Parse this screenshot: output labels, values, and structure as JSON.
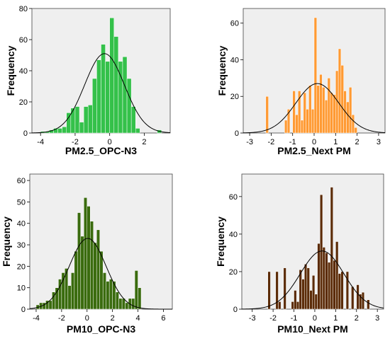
{
  "chart_data": [
    {
      "type": "bar",
      "xlabel": "PM2.5_OPC-N3",
      "ylabel": "Frequency",
      "xlim": [
        -4.5,
        3.5
      ],
      "ylim": [
        0,
        80
      ],
      "xticks": [
        -4,
        -2,
        0,
        2
      ],
      "yticks": [
        0,
        20,
        40,
        60,
        80
      ],
      "bin_width": 0.25,
      "color": "#34c14a",
      "background": "#efefef",
      "bins": [
        {
          "x": -4.0,
          "y": 1
        },
        {
          "x": -3.75,
          "y": 1
        },
        {
          "x": -3.5,
          "y": 2
        },
        {
          "x": -3.25,
          "y": 3
        },
        {
          "x": -3.0,
          "y": 3
        },
        {
          "x": -2.75,
          "y": 4
        },
        {
          "x": -2.5,
          "y": 13
        },
        {
          "x": -2.25,
          "y": 16
        },
        {
          "x": -2.0,
          "y": 17
        },
        {
          "x": -1.75,
          "y": 7
        },
        {
          "x": -1.5,
          "y": 17
        },
        {
          "x": -1.25,
          "y": 18
        },
        {
          "x": -1.0,
          "y": 35
        },
        {
          "x": -0.75,
          "y": 47
        },
        {
          "x": -0.5,
          "y": 57
        },
        {
          "x": -0.25,
          "y": 46
        },
        {
          "x": 0.0,
          "y": 74
        },
        {
          "x": 0.25,
          "y": 62
        },
        {
          "x": 0.5,
          "y": 46
        },
        {
          "x": 0.75,
          "y": 49
        },
        {
          "x": 1.0,
          "y": 35
        },
        {
          "x": 1.25,
          "y": 17
        },
        {
          "x": 1.5,
          "y": 3
        },
        {
          "x": 2.75,
          "y": 2
        }
      ],
      "normal_curve": {
        "mean": -0.3,
        "sd": 1.15,
        "peak": 51
      }
    },
    {
      "type": "bar",
      "xlabel": "PM2.5_Next PM",
      "ylabel": "Frequency",
      "xlim": [
        -3.3,
        3.3
      ],
      "ylim": [
        0,
        68
      ],
      "xticks": [
        -3,
        -2,
        -1,
        0,
        1,
        2,
        3
      ],
      "yticks": [
        0,
        20,
        40,
        60
      ],
      "bin_width": 0.125,
      "color": "#ff9a33",
      "background": "#efefef",
      "bins": [
        {
          "x": -2.25,
          "y": 20
        },
        {
          "x": -1.375,
          "y": 7
        },
        {
          "x": -1.25,
          "y": 13
        },
        {
          "x": -1.0,
          "y": 23
        },
        {
          "x": -0.875,
          "y": 10
        },
        {
          "x": -0.75,
          "y": 23
        },
        {
          "x": -0.625,
          "y": 7
        },
        {
          "x": -0.5,
          "y": 22
        },
        {
          "x": -0.375,
          "y": 13
        },
        {
          "x": -0.25,
          "y": 26
        },
        {
          "x": -0.125,
          "y": 13
        },
        {
          "x": 0.0,
          "y": 63
        },
        {
          "x": 0.125,
          "y": 26
        },
        {
          "x": 0.25,
          "y": 32
        },
        {
          "x": 0.375,
          "y": 25
        },
        {
          "x": 0.5,
          "y": 18
        },
        {
          "x": 0.625,
          "y": 30
        },
        {
          "x": 0.75,
          "y": 22
        },
        {
          "x": 0.875,
          "y": 21
        },
        {
          "x": 1.0,
          "y": 34
        },
        {
          "x": 1.125,
          "y": 46
        },
        {
          "x": 1.25,
          "y": 37
        },
        {
          "x": 1.375,
          "y": 23
        },
        {
          "x": 1.5,
          "y": 17
        },
        {
          "x": 1.625,
          "y": 25
        },
        {
          "x": 1.75,
          "y": 10
        },
        {
          "x": 1.875,
          "y": 3
        }
      ],
      "normal_curve": {
        "mean": 0.15,
        "sd": 1.0,
        "peak": 27
      }
    },
    {
      "type": "bar",
      "xlabel": "PM10_OPC-N3",
      "ylabel": "Frequency",
      "xlim": [
        -4.5,
        6.7
      ],
      "ylim": [
        0,
        63
      ],
      "xticks": [
        -4,
        -2,
        0,
        2,
        4,
        6
      ],
      "yticks": [
        0,
        10,
        20,
        30,
        40,
        50,
        60
      ],
      "bin_width": 0.25,
      "color": "#3a6b0e",
      "background": "#efefef",
      "bins": [
        {
          "x": -4.0,
          "y": 2
        },
        {
          "x": -3.75,
          "y": 3
        },
        {
          "x": -3.5,
          "y": 3
        },
        {
          "x": -3.25,
          "y": 4
        },
        {
          "x": -3.0,
          "y": 4
        },
        {
          "x": -2.75,
          "y": 8
        },
        {
          "x": -2.5,
          "y": 10
        },
        {
          "x": -2.25,
          "y": 14
        },
        {
          "x": -2.0,
          "y": 17
        },
        {
          "x": -1.75,
          "y": 19
        },
        {
          "x": -1.5,
          "y": 11
        },
        {
          "x": -1.25,
          "y": 17
        },
        {
          "x": -1.0,
          "y": 27
        },
        {
          "x": -0.75,
          "y": 45
        },
        {
          "x": -0.5,
          "y": 34
        },
        {
          "x": -0.25,
          "y": 52
        },
        {
          "x": 0.0,
          "y": 48
        },
        {
          "x": 0.25,
          "y": 41
        },
        {
          "x": 0.5,
          "y": 31
        },
        {
          "x": 0.75,
          "y": 37
        },
        {
          "x": 1.0,
          "y": 27
        },
        {
          "x": 1.25,
          "y": 17
        },
        {
          "x": 1.5,
          "y": 13
        },
        {
          "x": 1.75,
          "y": 14
        },
        {
          "x": 2.0,
          "y": 13
        },
        {
          "x": 2.25,
          "y": 8
        },
        {
          "x": 2.5,
          "y": 5
        },
        {
          "x": 2.75,
          "y": 5
        },
        {
          "x": 3.0,
          "y": 3
        },
        {
          "x": 3.25,
          "y": 5
        },
        {
          "x": 3.5,
          "y": 5
        },
        {
          "x": 3.75,
          "y": 18
        },
        {
          "x": 4.0,
          "y": 10
        }
      ],
      "normal_curve": {
        "mean": 0.05,
        "sd": 1.45,
        "peak": 33
      }
    },
    {
      "type": "bar",
      "xlabel": "PM10_Next PM",
      "ylabel": "Frequency",
      "xlim": [
        -3.5,
        3.3
      ],
      "ylim": [
        0,
        72
      ],
      "xticks": [
        -3,
        -2,
        -1,
        0,
        1,
        2,
        3
      ],
      "yticks": [
        0,
        20,
        40,
        60
      ],
      "bin_width": 0.125,
      "color": "#5b2b07",
      "background": "#efefef",
      "bins": [
        {
          "x": -2.25,
          "y": 20
        },
        {
          "x": -1.875,
          "y": 20
        },
        {
          "x": -1.75,
          "y": 4
        },
        {
          "x": -1.5,
          "y": 22
        },
        {
          "x": -1.125,
          "y": 4
        },
        {
          "x": -1.0,
          "y": 10
        },
        {
          "x": -0.875,
          "y": 4
        },
        {
          "x": -0.75,
          "y": 21
        },
        {
          "x": -0.625,
          "y": 16
        },
        {
          "x": -0.5,
          "y": 24
        },
        {
          "x": -0.375,
          "y": 22
        },
        {
          "x": -0.25,
          "y": 10
        },
        {
          "x": -0.125,
          "y": 18
        },
        {
          "x": 0.0,
          "y": 8
        },
        {
          "x": 0.125,
          "y": 35
        },
        {
          "x": 0.25,
          "y": 61
        },
        {
          "x": 0.375,
          "y": 33
        },
        {
          "x": 0.5,
          "y": 30
        },
        {
          "x": 0.625,
          "y": 25
        },
        {
          "x": 0.75,
          "y": 65
        },
        {
          "x": 0.875,
          "y": 26
        },
        {
          "x": 1.0,
          "y": 36
        },
        {
          "x": 1.125,
          "y": 19
        },
        {
          "x": 1.25,
          "y": 20
        },
        {
          "x": 1.5,
          "y": 20
        },
        {
          "x": 1.75,
          "y": 12
        },
        {
          "x": 2.0,
          "y": 13
        },
        {
          "x": 2.125,
          "y": 8
        },
        {
          "x": 2.25,
          "y": 9
        },
        {
          "x": 2.5,
          "y": 5
        }
      ],
      "normal_curve": {
        "mean": 0.35,
        "sd": 1.05,
        "peak": 31
      }
    }
  ]
}
